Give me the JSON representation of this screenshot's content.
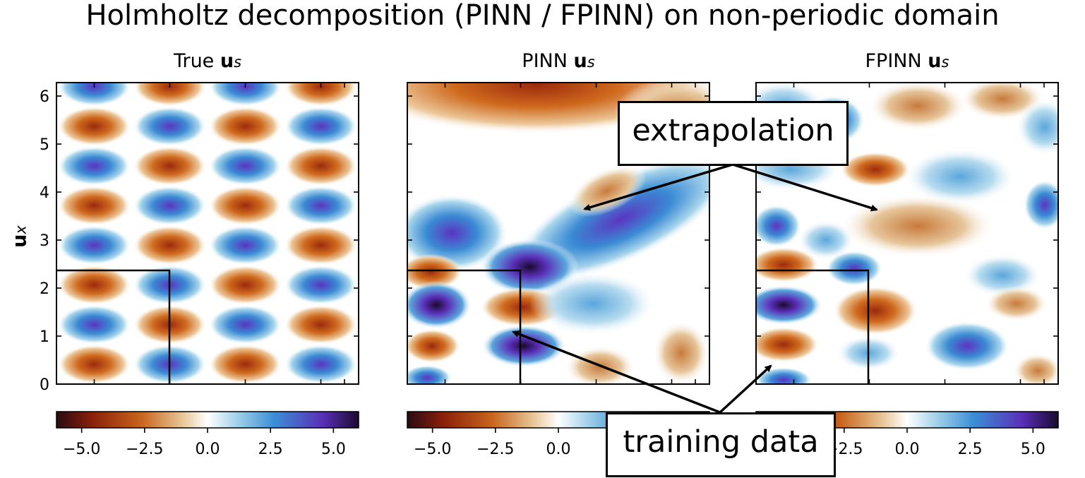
{
  "figure": {
    "title": "Holmholtz decomposition (PINN / FPINN) on non-periodic domain",
    "ylabel_main": "u",
    "ylabel_sub": "x"
  },
  "panels": [
    {
      "title_prefix": "True ",
      "title_bold": "u",
      "title_sub": "s"
    },
    {
      "title_prefix": "PINN ",
      "title_bold": "u",
      "title_sub": "s"
    },
    {
      "title_prefix": "FPINN ",
      "title_bold": "u",
      "title_sub": "s"
    }
  ],
  "annotations": {
    "extrapolation": "extrapolation",
    "training_data": "training data"
  },
  "chart_data": {
    "type": "heatmap",
    "title": "Holmholtz decomposition (PINN / FPINN) on non-periodic domain",
    "ylabel": "u_x",
    "y_ticks": [
      0,
      1,
      2,
      3,
      4,
      5,
      6
    ],
    "y_tick_labels": [
      "0",
      "1",
      "2",
      "3",
      "4",
      "5",
      "6"
    ],
    "ylim": [
      0,
      6.28
    ],
    "colormap": "twilight_shifted-like (dark red → orange → white → blue → purple → black)",
    "colorbar_ticks": [
      -5.0,
      -2.5,
      0.0,
      2.5,
      5.0
    ],
    "colorbar_tick_labels": [
      "−5.0",
      "−2.5",
      "0.0",
      "2.5",
      "5.0"
    ],
    "colorbar_range": [
      -6,
      6
    ],
    "training_region": {
      "x_max_fraction_of_domain": 0.375,
      "y_max": 2.35
    },
    "panels": [
      "True u_s",
      "PINN u_s",
      "FPINN u_s"
    ],
    "colorbar_colors": [
      "#2a0a13",
      "#8a2108",
      "#c8641c",
      "#e8c89a",
      "#ffffff",
      "#9fd0e8",
      "#3b8fd6",
      "#5a2fb8",
      "#1a0a2e"
    ]
  }
}
